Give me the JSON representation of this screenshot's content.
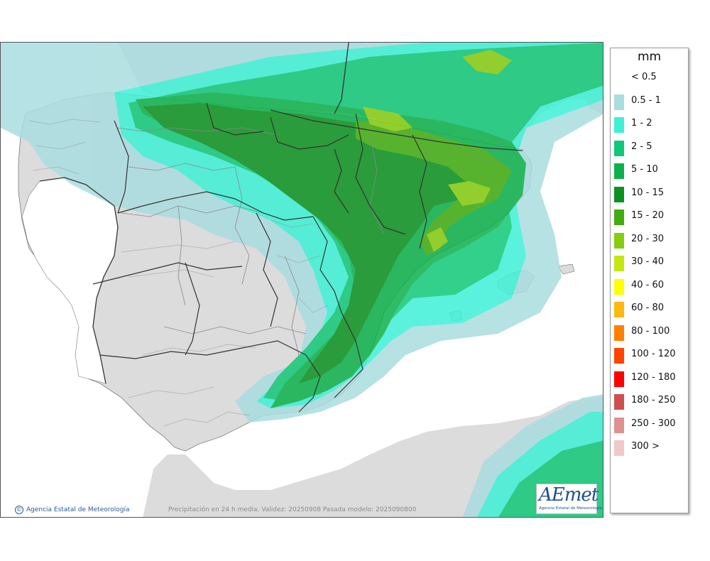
{
  "legend": {
    "unit": "mm",
    "items": [
      {
        "label": "< 0.5",
        "color": "#ffffff"
      },
      {
        "label": "0.5 - 1",
        "color": "#aadde0"
      },
      {
        "label": "1 - 2",
        "color": "#3ef0d6"
      },
      {
        "label": "2 - 5",
        "color": "#10c878"
      },
      {
        "label": "5 - 10",
        "color": "#0db14b"
      },
      {
        "label": "10 - 15",
        "color": "#0b9120"
      },
      {
        "label": "15 - 20",
        "color": "#40ad10"
      },
      {
        "label": "20 - 30",
        "color": "#86cc10"
      },
      {
        "label": "30 - 40",
        "color": "#c6e610"
      },
      {
        "label": "40 - 60",
        "color": "#ffff00"
      },
      {
        "label": "60 - 80",
        "color": "#ffb810"
      },
      {
        "label": "80 - 100",
        "color": "#ff8000"
      },
      {
        "label": "100 - 120",
        "color": "#ff4400"
      },
      {
        "label": "120 - 180",
        "color": "#ff0000"
      },
      {
        "label": "180 - 250",
        "color": "#cc5050"
      },
      {
        "label": "250 - 300",
        "color": "#e09090"
      },
      {
        "label": "300 >",
        "color": "#f0c8c8"
      }
    ]
  },
  "credit": {
    "text": "Agencia Estatal de Meteorología",
    "icon": "copyright-icon"
  },
  "caption": "Precipitación en 24 h media. Validez: 20250908 Pasada modelo: 2025090800",
  "logo": {
    "word": "AEmet",
    "sub": "Agencia Estatal de Meteorología"
  },
  "colors": {
    "land": "#dcdcdc",
    "sea": "#ffffff",
    "border": "#333333"
  }
}
